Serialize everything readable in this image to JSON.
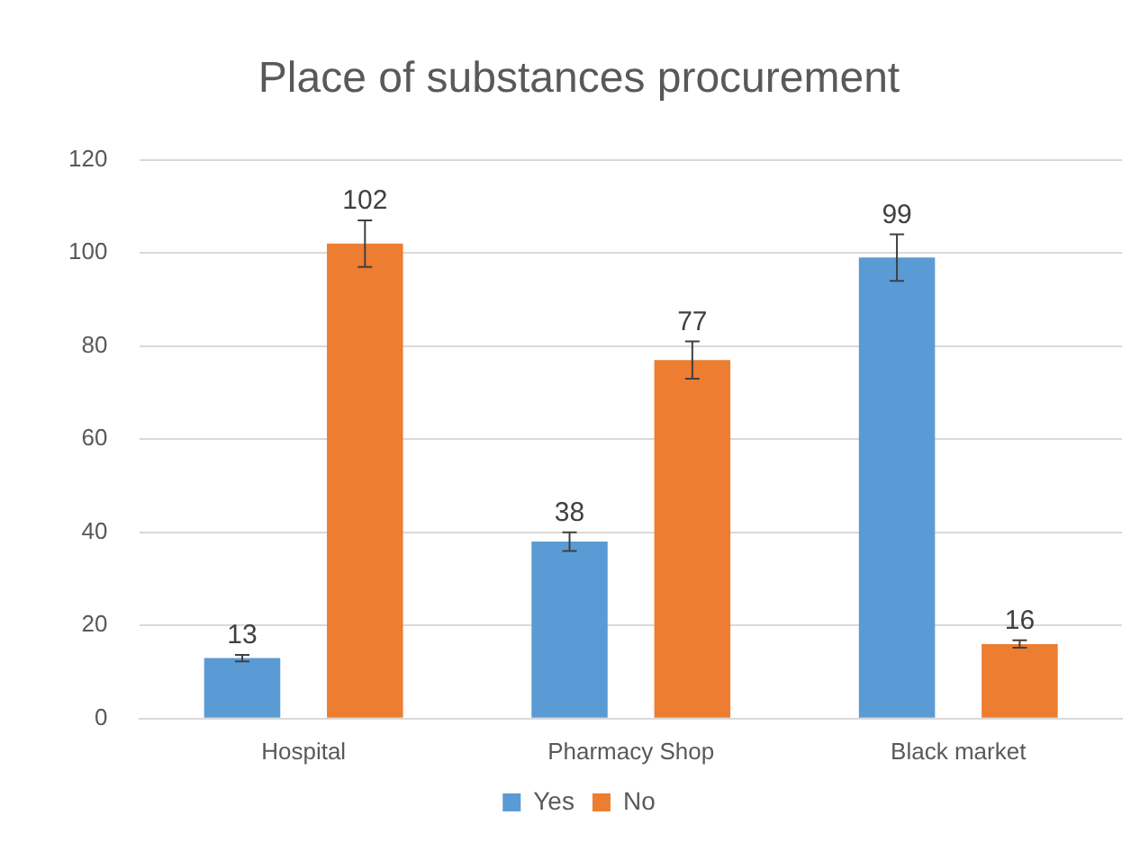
{
  "chart_data": {
    "type": "bar",
    "title": "Place of substances procurement",
    "categories": [
      "Hospital",
      "Pharmacy Shop",
      "Black market"
    ],
    "series": [
      {
        "name": "Yes",
        "color": "#5b9bd5",
        "values": [
          13,
          38,
          99
        ],
        "errors": [
          0.7,
          2,
          5
        ]
      },
      {
        "name": "No",
        "color": "#ed7d31",
        "values": [
          102,
          77,
          16
        ],
        "errors": [
          5,
          4,
          0.8
        ]
      }
    ],
    "ylim": [
      0,
      120
    ],
    "yticks": [
      0,
      20,
      40,
      60,
      80,
      100,
      120
    ],
    "grid": "y",
    "legend": "bottom",
    "data_labels": true
  }
}
